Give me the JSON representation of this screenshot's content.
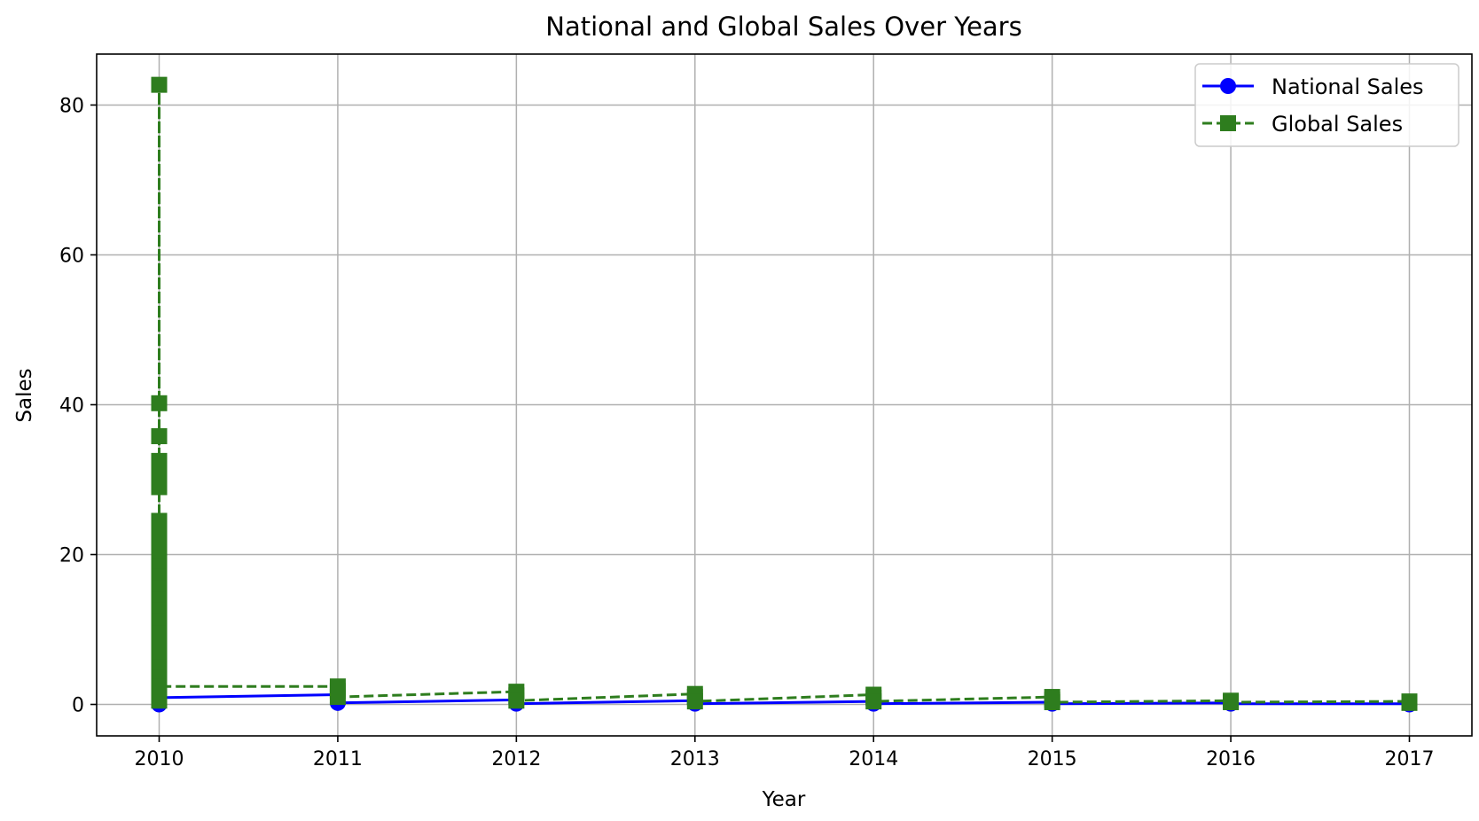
{
  "chart_data": {
    "type": "line",
    "title": "National and Global Sales Over Years",
    "xlabel": "Year",
    "ylabel": "Sales",
    "xlim": [
      2009.65,
      2017.35
    ],
    "ylim": [
      -4.2,
      86.8
    ],
    "x_ticks": [
      2010,
      2011,
      2012,
      2013,
      2014,
      2015,
      2016,
      2017
    ],
    "y_ticks": [
      0,
      20,
      40,
      60,
      80
    ],
    "grid": true,
    "legend_position": "top-right",
    "series": [
      {
        "name": "National Sales",
        "color": "#0000ff",
        "line_style": "solid",
        "marker": "circle",
        "points": [
          [
            2010,
            0.0
          ],
          [
            2010,
            0.4
          ],
          [
            2010,
            0.9
          ],
          [
            2011,
            1.3
          ],
          [
            2011,
            0.2
          ],
          [
            2012,
            0.6
          ],
          [
            2012,
            0.1
          ],
          [
            2013,
            0.5
          ],
          [
            2013,
            0.1
          ],
          [
            2014,
            0.4
          ],
          [
            2014,
            0.1
          ],
          [
            2015,
            0.3
          ],
          [
            2015,
            0.1
          ],
          [
            2016,
            0.2
          ],
          [
            2016,
            0.1
          ],
          [
            2017,
            0.1
          ],
          [
            2017,
            0.0
          ]
        ]
      },
      {
        "name": "Global Sales",
        "color": "#2e7d1e",
        "line_style": "dashed",
        "marker": "square",
        "points": [
          [
            2010,
            0.5
          ],
          [
            2010,
            82.7
          ],
          [
            2010,
            40.2
          ],
          [
            2010,
            35.8
          ],
          [
            2010,
            32.5
          ],
          [
            2010,
            31.0
          ],
          [
            2010,
            29.0
          ],
          [
            2010,
            24.5
          ],
          [
            2010,
            23.0
          ],
          [
            2010,
            21.5
          ],
          [
            2010,
            20.0
          ],
          [
            2010,
            18.5
          ],
          [
            2010,
            17.0
          ],
          [
            2010,
            15.5
          ],
          [
            2010,
            14.0
          ],
          [
            2010,
            12.5
          ],
          [
            2010,
            11.0
          ],
          [
            2010,
            9.5
          ],
          [
            2010,
            8.0
          ],
          [
            2010,
            6.5
          ],
          [
            2010,
            5.0
          ],
          [
            2010,
            3.5
          ],
          [
            2010,
            2.4
          ],
          [
            2011,
            2.4
          ],
          [
            2011,
            1.8
          ],
          [
            2011,
            1.0
          ],
          [
            2012,
            1.7
          ],
          [
            2012,
            1.2
          ],
          [
            2012,
            0.5
          ],
          [
            2013,
            1.4
          ],
          [
            2013,
            1.0
          ],
          [
            2013,
            0.4
          ],
          [
            2014,
            1.3
          ],
          [
            2014,
            0.9
          ],
          [
            2014,
            0.4
          ],
          [
            2015,
            1.0
          ],
          [
            2015,
            0.6
          ],
          [
            2015,
            0.3
          ],
          [
            2016,
            0.5
          ],
          [
            2016,
            0.3
          ],
          [
            2017,
            0.4
          ],
          [
            2017,
            0.2
          ]
        ]
      }
    ]
  }
}
